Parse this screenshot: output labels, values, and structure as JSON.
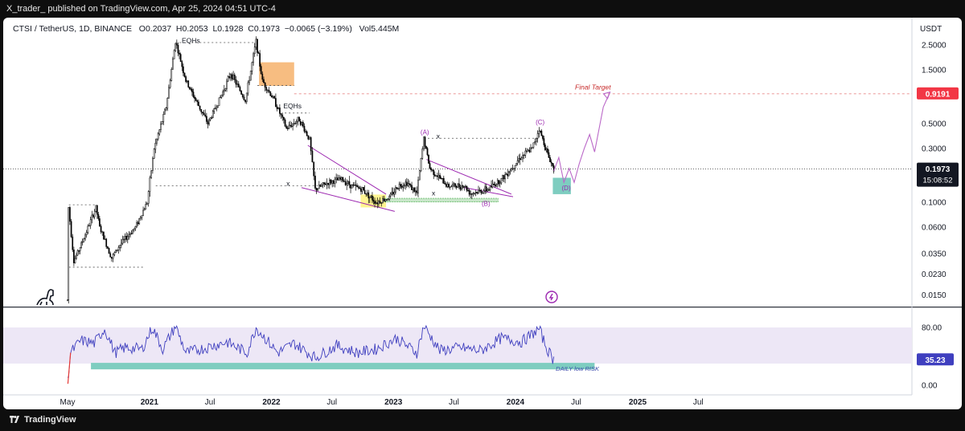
{
  "header": {
    "published_line": "X_trader_ published on TradingView.com, Apr 25, 2024 04:51 UTC-4"
  },
  "symbol_line": {
    "symbol": "CTSI / TetherUS, 1D, BINANCE",
    "open": "O0.2037",
    "high": "H0.2053",
    "low": "L0.1928",
    "close": "C0.1973",
    "change": "−0.0065 (−3.19%)",
    "volume": "Vol5.445M"
  },
  "footer": {
    "brand": "TradingView"
  },
  "colors": {
    "candles": "#000000",
    "accent_purple": "#9c27b0",
    "rsi_line": "#3f3fbf",
    "rsi_band": "#ede7f6",
    "teal_zone": "#7ecdc0",
    "orange_zone": "#f6b26b",
    "yellow_zone": "#fff176",
    "target_line": "#e57373",
    "target_badge": "#f23645",
    "price_badge": "#131722"
  },
  "icons": {
    "watermark": "dinosaur-icon",
    "lightning": "lightning-icon"
  },
  "chart_data": [
    {
      "type": "candlestick",
      "symbol": "CTSI / TetherUS",
      "interval": "1D",
      "exchange": "BINANCE",
      "y_scale": "log",
      "y_unit": "USDT",
      "ylim": [
        0.0135,
        2.8
      ],
      "price_axis_labels": [
        "2.5000",
        "1.5000",
        "0.9191",
        "0.5000",
        "0.3000",
        "0.1973",
        "0.1000",
        "0.0600",
        "0.0350",
        "0.0230",
        "0.0150"
      ],
      "time_axis_labels": [
        "May",
        "2021",
        "Jul",
        "2022",
        "Jul",
        "2023",
        "Jul",
        "2024",
        "Jul",
        "2025",
        "Jul"
      ],
      "last_price": "0.1973",
      "countdown": "15:08:52",
      "unit_label": "USDT",
      "target_price": "0.9191",
      "series_path": [
        [
          "2020-05-01",
          0.0135
        ],
        [
          "2020-05-04",
          0.09
        ],
        [
          "2020-05-20",
          0.03
        ],
        [
          "2020-06-15",
          0.045
        ],
        [
          "2020-07-25",
          0.09
        ],
        [
          "2020-08-05",
          0.06
        ],
        [
          "2020-09-10",
          0.032
        ],
        [
          "2020-10-05",
          0.042
        ],
        [
          "2020-11-20",
          0.06
        ],
        [
          "2020-12-25",
          0.1
        ],
        [
          "2021-01-15",
          0.3
        ],
        [
          "2021-02-20",
          0.7
        ],
        [
          "2021-03-20",
          2.7
        ],
        [
          "2021-04-20",
          1.2
        ],
        [
          "2021-05-20",
          0.8
        ],
        [
          "2021-06-25",
          0.5
        ],
        [
          "2021-08-05",
          0.9
        ],
        [
          "2021-09-01",
          1.4
        ],
        [
          "2021-10-15",
          0.8
        ],
        [
          "2021-11-16",
          2.7
        ],
        [
          "2021-12-05",
          1.2
        ],
        [
          "2022-01-10",
          0.8
        ],
        [
          "2022-02-15",
          0.45
        ],
        [
          "2022-03-25",
          0.55
        ],
        [
          "2022-04-25",
          0.36
        ],
        [
          "2022-05-12",
          0.13
        ],
        [
          "2022-06-20",
          0.15
        ],
        [
          "2022-07-30",
          0.16
        ],
        [
          "2022-08-30",
          0.14
        ],
        [
          "2022-09-30",
          0.13
        ],
        [
          "2022-11-10",
          0.1
        ],
        [
          "2022-12-20",
          0.11
        ],
        [
          "2023-01-15",
          0.14
        ],
        [
          "2023-02-10",
          0.15
        ],
        [
          "2023-03-12",
          0.12
        ],
        [
          "2023-04-02",
          0.37
        ],
        [
          "2023-04-20",
          0.2
        ],
        [
          "2023-06-12",
          0.14
        ],
        [
          "2023-08-01",
          0.14
        ],
        [
          "2023-08-20",
          0.12
        ],
        [
          "2023-10-10",
          0.13
        ],
        [
          "2023-11-20",
          0.16
        ],
        [
          "2023-12-20",
          0.2
        ],
        [
          "2024-01-15",
          0.25
        ],
        [
          "2024-02-20",
          0.3
        ],
        [
          "2024-03-12",
          0.45
        ],
        [
          "2024-04-10",
          0.25
        ],
        [
          "2024-04-25",
          0.1973
        ]
      ],
      "annotations": [
        {
          "label": "EQHs",
          "date": "2021-05-05",
          "price": 2.6
        },
        {
          "label": "EQHs",
          "date": "2022-03-05",
          "price": 0.68
        },
        {
          "label": "Final Target",
          "date": "2024-08-20",
          "price": 1.0
        },
        {
          "label": "(A)",
          "date": "2023-04-05",
          "price": 0.4
        },
        {
          "label": "(B)",
          "date": "2023-10-05",
          "price": 0.093
        },
        {
          "label": "(C)",
          "date": "2024-03-15",
          "price": 0.49
        },
        {
          "label": "(D)",
          "date": "2024-06-01",
          "price": 0.128
        },
        {
          "label": "x",
          "date": "2022-02-20",
          "price": 0.14
        },
        {
          "label": "x",
          "date": "2023-05-15",
          "price": 0.37
        },
        {
          "label": "x",
          "date": "2023-05-01",
          "price": 0.115
        }
      ],
      "projection_path": [
        [
          "2024-04-25",
          0.19
        ],
        [
          "2024-05-10",
          0.25
        ],
        [
          "2024-05-25",
          0.15
        ],
        [
          "2024-06-10",
          0.2
        ],
        [
          "2024-06-25",
          0.15
        ],
        [
          "2024-07-10",
          0.22
        ],
        [
          "2024-07-25",
          0.3
        ],
        [
          "2024-08-10",
          0.4
        ],
        [
          "2024-08-25",
          0.28
        ],
        [
          "2024-09-20",
          0.7
        ],
        [
          "2024-10-10",
          0.95
        ]
      ]
    },
    {
      "type": "line",
      "name": "RSI",
      "ylim": [
        0,
        100
      ],
      "axis_labels": [
        "80.00",
        "35.23",
        "0.00"
      ],
      "band": [
        30,
        80
      ],
      "last_value": "35.23",
      "zone_label": "DAILY low RISK",
      "series_path": [
        [
          "2020-05-01",
          5
        ],
        [
          "2020-05-10",
          45
        ],
        [
          "2020-06-10",
          62
        ],
        [
          "2020-07-20",
          58
        ],
        [
          "2020-08-20",
          78
        ],
        [
          "2020-09-20",
          45
        ],
        [
          "2020-10-20",
          52
        ],
        [
          "2020-12-10",
          50
        ],
        [
          "2021-01-10",
          80
        ],
        [
          "2021-02-10",
          50
        ],
        [
          "2021-03-20",
          82
        ],
        [
          "2021-04-20",
          45
        ],
        [
          "2021-06-20",
          52
        ],
        [
          "2021-08-20",
          60
        ],
        [
          "2021-10-20",
          45
        ],
        [
          "2021-11-16",
          80
        ],
        [
          "2022-01-20",
          45
        ],
        [
          "2022-03-10",
          58
        ],
        [
          "2022-05-12",
          38
        ],
        [
          "2022-07-15",
          55
        ],
        [
          "2022-09-15",
          45
        ],
        [
          "2022-11-10",
          50
        ],
        [
          "2023-01-10",
          65
        ],
        [
          "2023-03-12",
          45
        ],
        [
          "2023-04-02",
          82
        ],
        [
          "2023-05-20",
          48
        ],
        [
          "2023-07-20",
          52
        ],
        [
          "2023-09-20",
          48
        ],
        [
          "2023-11-20",
          65
        ],
        [
          "2024-01-20",
          60
        ],
        [
          "2024-03-12",
          78
        ],
        [
          "2024-04-05",
          50
        ],
        [
          "2024-04-25",
          35
        ]
      ]
    }
  ]
}
